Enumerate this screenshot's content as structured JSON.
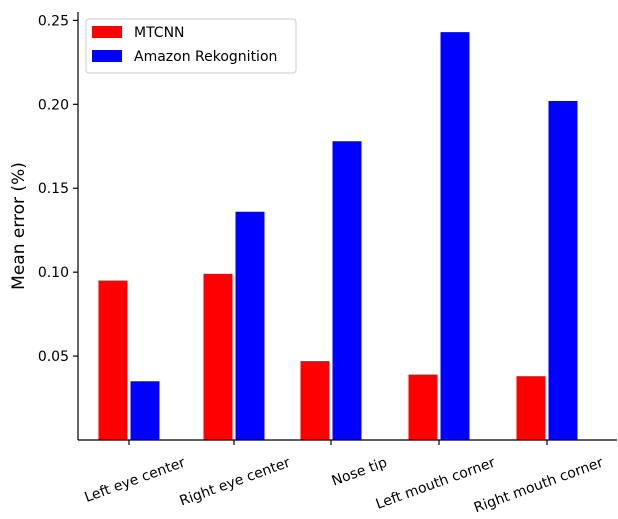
{
  "chart_data": {
    "type": "bar",
    "title": "",
    "xlabel": "",
    "ylabel": "Mean error (%)",
    "categories": [
      "Left eye center",
      "Right eye center",
      "Nose tip",
      "Left mouth corner",
      "Right mouth corner"
    ],
    "series": [
      {
        "name": "MTCNN",
        "color": "#ff0000",
        "values": [
          0.095,
          0.099,
          0.047,
          0.039,
          0.038
        ]
      },
      {
        "name": "Amazon Rekognition",
        "color": "#0000ff",
        "values": [
          0.035,
          0.136,
          0.178,
          0.243,
          0.202
        ]
      }
    ],
    "ylim": [
      0.0,
      0.255
    ],
    "yticks": [
      0.05,
      0.1,
      0.15,
      0.2,
      0.25
    ],
    "ytick_labels": [
      "0.05",
      "0.10",
      "0.15",
      "0.20",
      "0.25"
    ],
    "legend_position": "top-left",
    "grid": false
  }
}
